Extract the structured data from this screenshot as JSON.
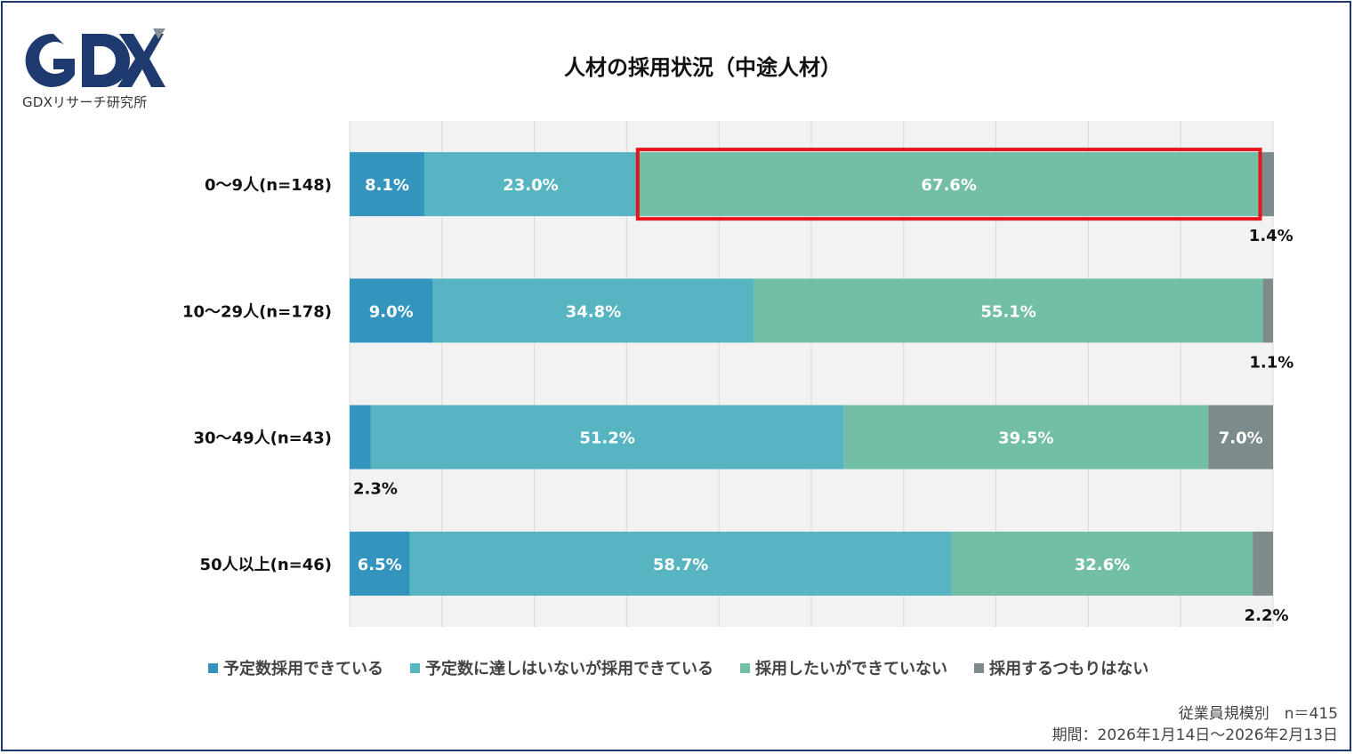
{
  "logo": {
    "caption": "GDXリサーチ研究所"
  },
  "chart_data": {
    "type": "bar",
    "orientation": "horizontal",
    "stacked": true,
    "title": "人材の採用状況（中途人材）",
    "categories": [
      "0〜9人(n=148)",
      "10〜29人(n=178)",
      "30〜49人(n=43)",
      "50人以上(n=46)"
    ],
    "series": [
      {
        "name": "予定数採用できている",
        "color": "#3394be",
        "values": [
          8.1,
          9.0,
          2.3,
          6.5
        ],
        "labels": [
          "8.1%",
          "9.0%",
          "2.3%",
          "6.5%"
        ]
      },
      {
        "name": "予定数に達しはいないが採用できている",
        "color": "#56b5c0",
        "values": [
          23.0,
          34.8,
          51.2,
          58.7
        ],
        "labels": [
          "23.0%",
          "34.8%",
          "51.2%",
          "58.7%"
        ]
      },
      {
        "name": "採用したいができていない",
        "color": "#73bea6",
        "values": [
          67.6,
          55.1,
          39.5,
          32.6
        ],
        "labels": [
          "67.6%",
          "55.1%",
          "39.5%",
          "32.6%"
        ]
      },
      {
        "name": "採用するつもりはない",
        "color": "#7c8c8c",
        "values": [
          1.4,
          1.1,
          7.0,
          2.2
        ],
        "labels": [
          "1.4%",
          "1.1%",
          "7.0%",
          "2.2%"
        ]
      }
    ],
    "xlim": [
      0,
      100
    ],
    "grid": true,
    "legend": "bottom",
    "highlight": {
      "category_index": 0,
      "series_index": 2,
      "color": "#e8141b"
    }
  },
  "notes": {
    "sample": "従業員規模別　n＝415",
    "period": "期間：2026年1月14日〜2026年2月13日"
  },
  "colors": {
    "frame": "#1f3a6e",
    "logo": "#1f3a6e",
    "logo_accent": "#8a8f96",
    "plot_bg": "#f2f2f2",
    "grid": "#d9d9d9"
  }
}
